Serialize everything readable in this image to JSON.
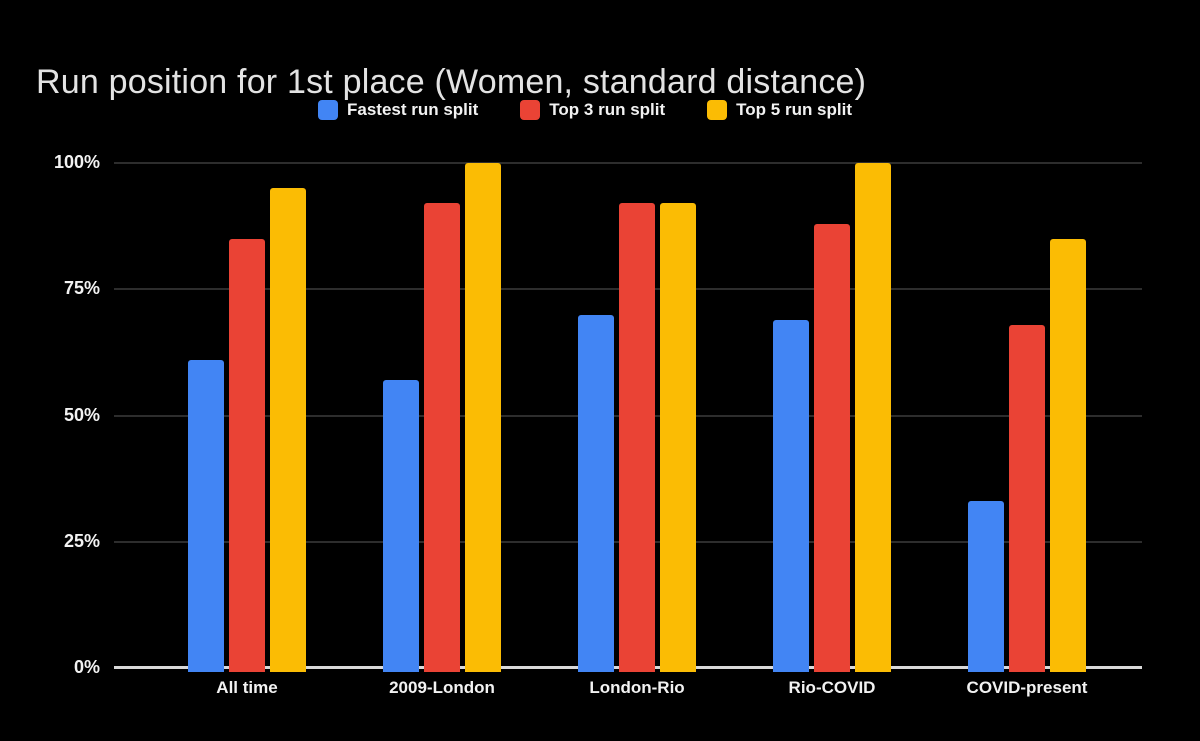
{
  "title": "Run position for 1st place (Women, standard distance)",
  "colors": {
    "background": "#000000",
    "series_blue": "#4285F4",
    "series_red": "#EA4335",
    "series_yellow": "#FBBC04",
    "gridline": "#2d2d2d",
    "axis_baseline": "#d9d9d9",
    "title_text": "#e3e3e3",
    "label_text": "#f2f2f2"
  },
  "chart_data": {
    "type": "bar",
    "title": "Run position for 1st place (Women, standard distance)",
    "categories": [
      "All time",
      "2009-London",
      "London-Rio",
      "Rio-COVID",
      "COVID-present"
    ],
    "series": [
      {
        "name": "Fastest run split",
        "color": "#4285F4",
        "values": [
          61,
          57,
          70,
          69,
          33
        ]
      },
      {
        "name": "Top 3 run split",
        "color": "#EA4335",
        "values": [
          85,
          92,
          92,
          88,
          68
        ]
      },
      {
        "name": "Top 5 run split",
        "color": "#FBBC04",
        "values": [
          95,
          100,
          92,
          100,
          85
        ]
      }
    ],
    "xlabel": "",
    "ylabel": "",
    "ylim": [
      0,
      100
    ],
    "yticks": [
      "0%",
      "25%",
      "50%",
      "75%",
      "100%"
    ],
    "grid": true,
    "legend_position": "top",
    "background": "#000000"
  }
}
